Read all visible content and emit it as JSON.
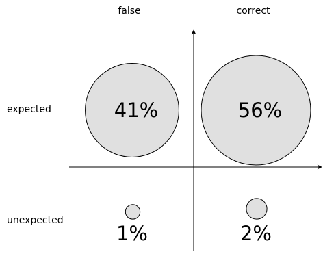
{
  "chart_data": {
    "type": "bubble",
    "columns": [
      "false",
      "correct"
    ],
    "rows": [
      "expected",
      "unexpected"
    ],
    "cells": [
      {
        "row": "expected",
        "column": "false",
        "value": 41,
        "label": "41%"
      },
      {
        "row": "expected",
        "column": "correct",
        "value": 56,
        "label": "56%"
      },
      {
        "row": "unexpected",
        "column": "false",
        "value": 1,
        "label": "1%"
      },
      {
        "row": "unexpected",
        "column": "correct",
        "value": 2,
        "label": "2%"
      }
    ],
    "bubble_fill": "#e0e0e0",
    "bubble_stroke": "#000000",
    "axis_color": "#000000"
  }
}
